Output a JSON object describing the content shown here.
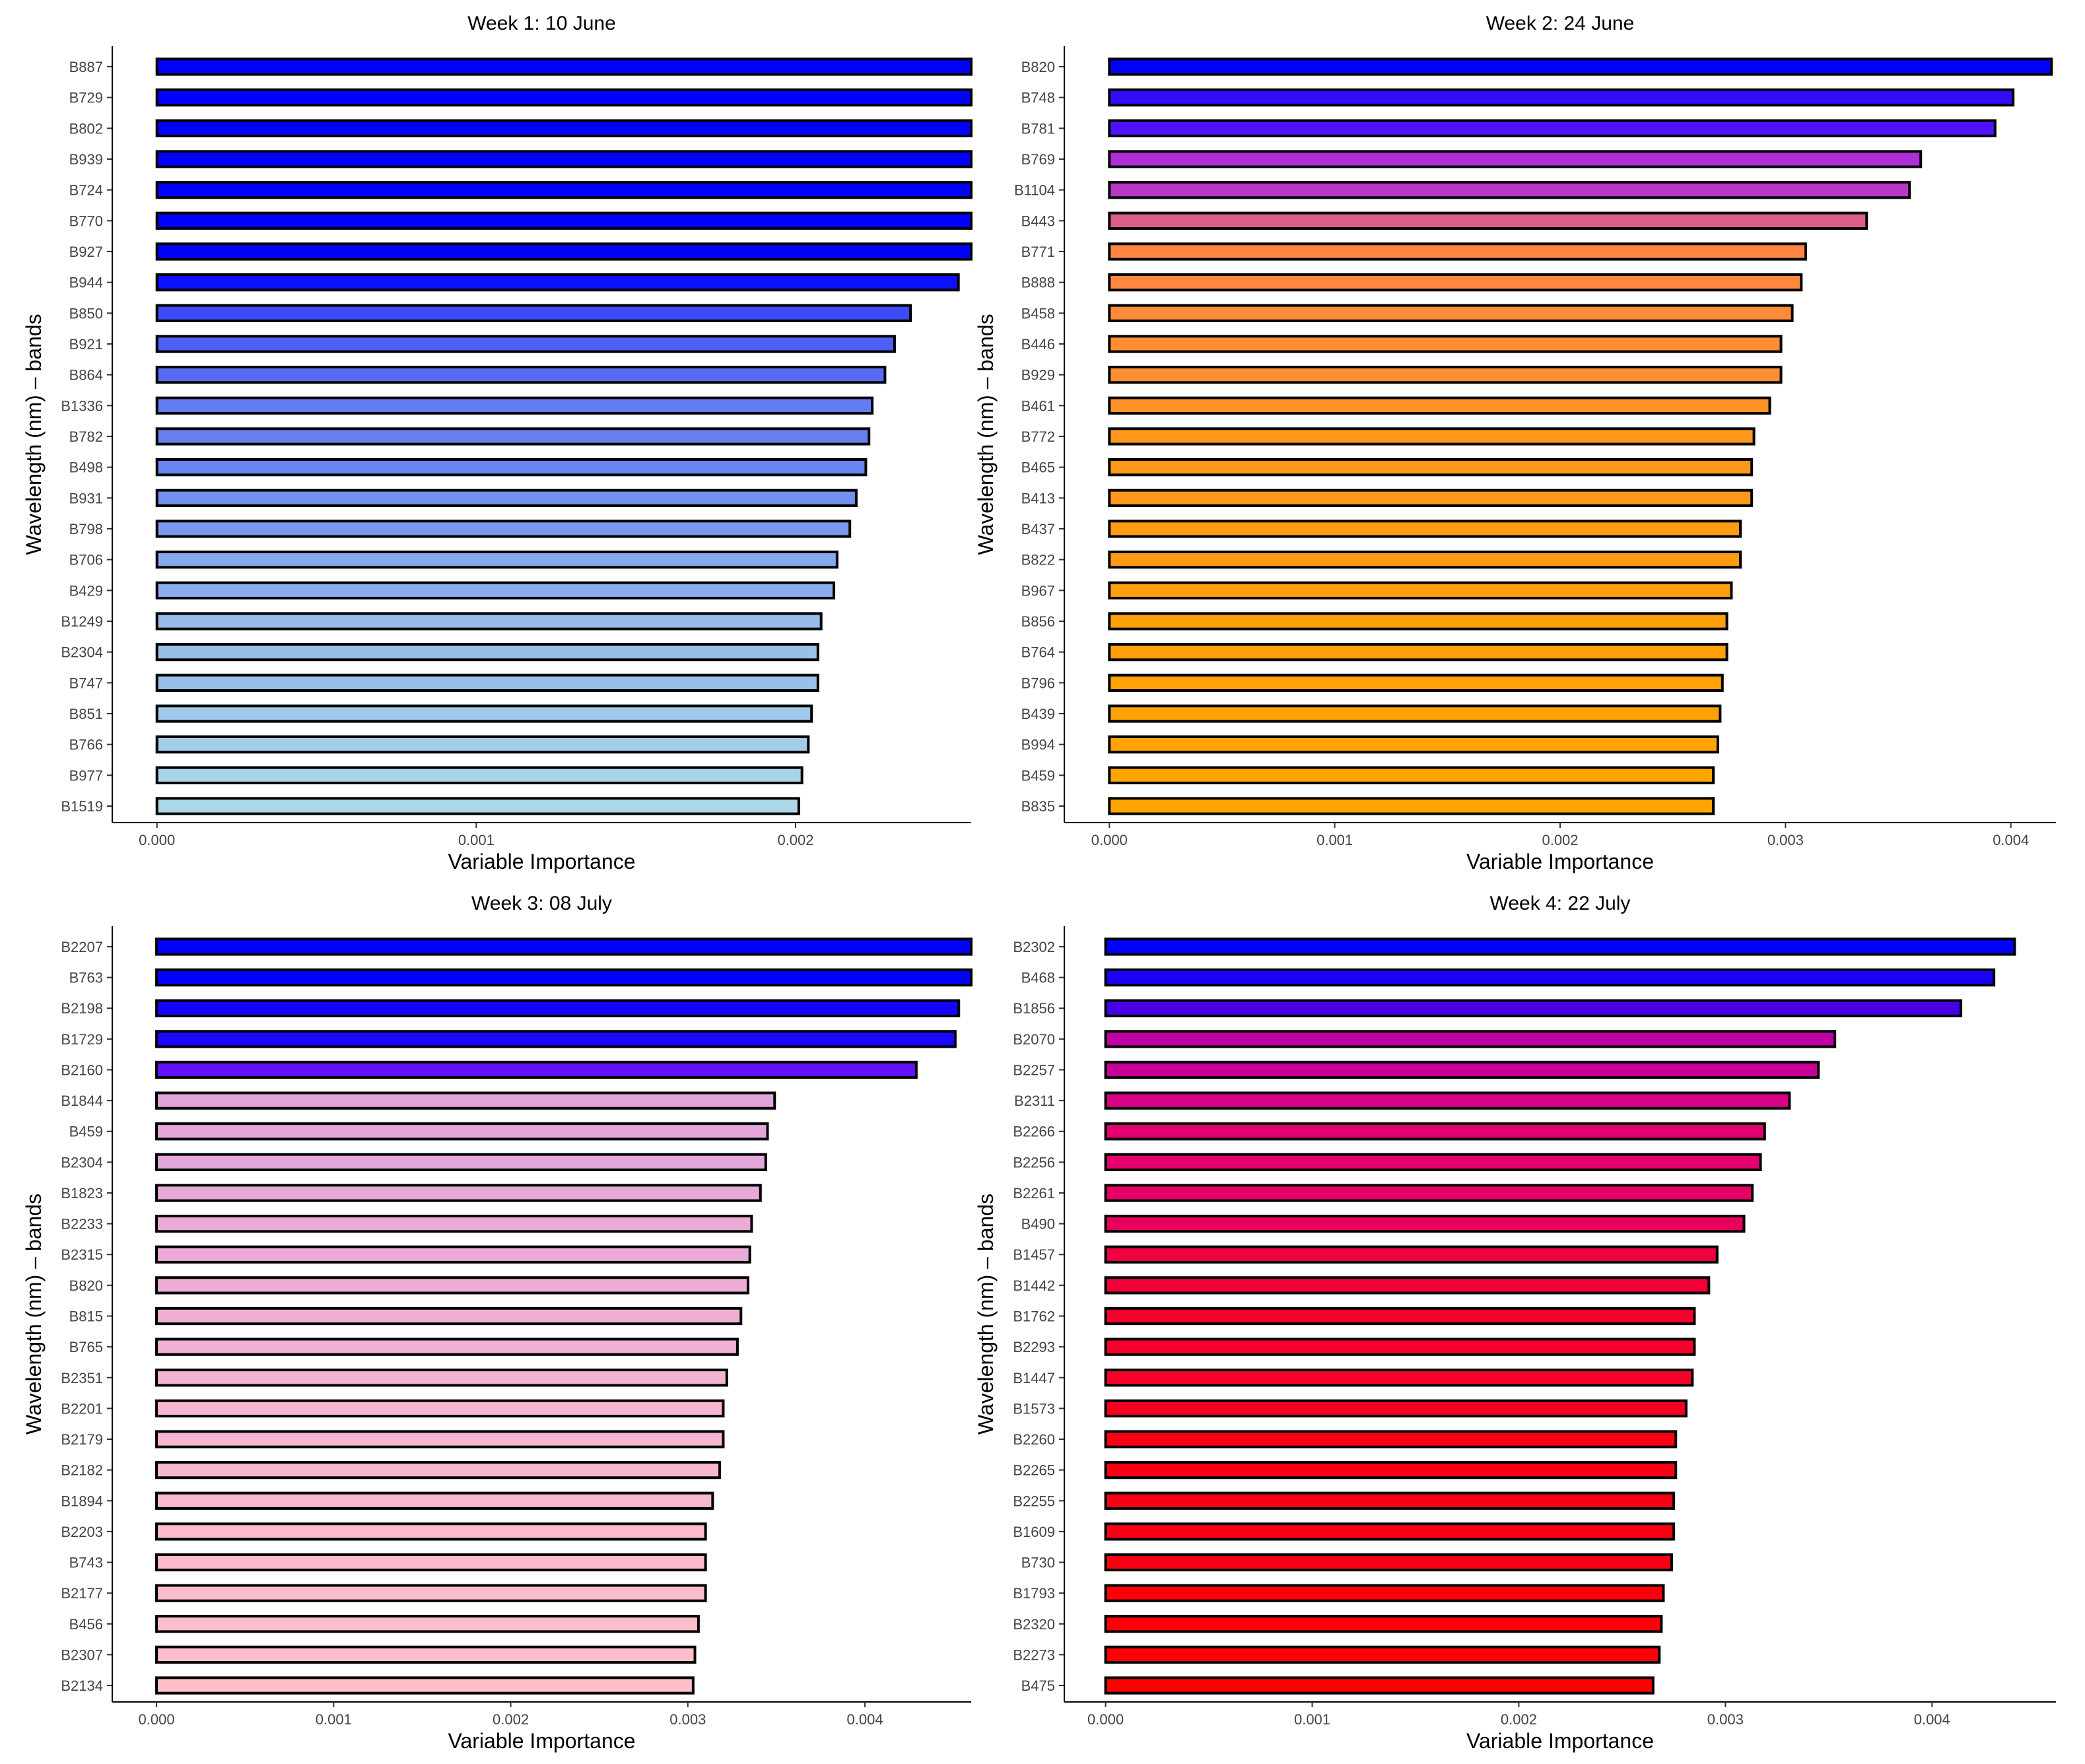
{
  "chart_data": [
    {
      "type": "bar",
      "orientation": "horizontal",
      "title": "Week 1: 10 June",
      "xlabel": "Variable Importance",
      "ylabel": "Wavelength (nm) – bands",
      "xlim": [
        -0.00014,
        0.00255
      ],
      "xticks": [
        0.0,
        0.001,
        0.002
      ],
      "xtick_labels": [
        "0.000",
        "0.001",
        "0.002"
      ],
      "gradient": [
        "#0000ff",
        "#add8e6"
      ],
      "categories": [
        "B887",
        "B729",
        "B802",
        "B939",
        "B724",
        "B770",
        "B927",
        "B944",
        "B850",
        "B921",
        "B864",
        "B1336",
        "B782",
        "B498",
        "B931",
        "B798",
        "B706",
        "B429",
        "B1249",
        "B2304",
        "B747",
        "B851",
        "B766",
        "B977",
        "B1519"
      ],
      "values": [
        0.00255,
        0.00255,
        0.00255,
        0.00255,
        0.00255,
        0.00255,
        0.00255,
        0.00251,
        0.00236,
        0.00231,
        0.00228,
        0.00224,
        0.00223,
        0.00222,
        0.00219,
        0.00217,
        0.00213,
        0.00212,
        0.00208,
        0.00207,
        0.00207,
        0.00205,
        0.00204,
        0.00202,
        0.00201
      ]
    },
    {
      "type": "bar",
      "orientation": "horizontal",
      "title": "Week 2: 24 June",
      "xlabel": "Variable Importance",
      "ylabel": "Wavelength (nm) – bands",
      "xlim": [
        -0.0002,
        0.0042
      ],
      "xticks": [
        0.0,
        0.001,
        0.002,
        0.003,
        0.004
      ],
      "xtick_labels": [
        "0.000",
        "0.001",
        "0.002",
        "0.003",
        "0.004"
      ],
      "gradient": [
        "#0000ff",
        "#a020f0",
        "#ff7f50",
        "#ffa500"
      ],
      "categories": [
        "B820",
        "B748",
        "B781",
        "B769",
        "B1104",
        "B443",
        "B771",
        "B888",
        "B458",
        "B446",
        "B929",
        "B461",
        "B772",
        "B465",
        "B413",
        "B437",
        "B822",
        "B967",
        "B856",
        "B764",
        "B796",
        "B439",
        "B994",
        "B459",
        "B835"
      ],
      "values": [
        0.00418,
        0.00401,
        0.00393,
        0.0036,
        0.00355,
        0.00336,
        0.00309,
        0.00307,
        0.00303,
        0.00298,
        0.00298,
        0.00293,
        0.00286,
        0.00285,
        0.00285,
        0.0028,
        0.0028,
        0.00276,
        0.00274,
        0.00274,
        0.00272,
        0.00271,
        0.0027,
        0.00268,
        0.00268
      ]
    },
    {
      "type": "bar",
      "orientation": "horizontal",
      "title": "Week 3: 08  July",
      "xlabel": "Variable Importance",
      "ylabel": "Wavelength (nm) – bands",
      "xlim": [
        -0.00025,
        0.0046
      ],
      "xticks": [
        0.0,
        0.001,
        0.002,
        0.003,
        0.004
      ],
      "xtick_labels": [
        "0.000",
        "0.001",
        "0.002",
        "0.003",
        "0.004"
      ],
      "gradient": [
        "#0000ff",
        "#a020f0",
        "#dda0dd",
        "#ffc0cb"
      ],
      "categories": [
        "B2207",
        "B763",
        "B2198",
        "B1729",
        "B2160",
        "B1844",
        "B459",
        "B2304",
        "B1823",
        "B2233",
        "B2315",
        "B820",
        "B815",
        "B765",
        "B2351",
        "B2201",
        "B2179",
        "B2182",
        "B1894",
        "B2203",
        "B743",
        "B2177",
        "B456",
        "B2307",
        "B2134"
      ],
      "values": [
        0.0046,
        0.0046,
        0.00453,
        0.00451,
        0.00429,
        0.00349,
        0.00345,
        0.00344,
        0.00341,
        0.00336,
        0.00335,
        0.00334,
        0.0033,
        0.00328,
        0.00322,
        0.0032,
        0.0032,
        0.00318,
        0.00314,
        0.0031,
        0.0031,
        0.0031,
        0.00306,
        0.00304,
        0.00303
      ]
    },
    {
      "type": "bar",
      "orientation": "horizontal",
      "title": "Week 4: 22 July",
      "xlabel": "Variable Importance",
      "ylabel": "Wavelength (nm) – bands",
      "xlim": [
        -0.0002,
        0.0046
      ],
      "xticks": [
        0.0,
        0.001,
        0.002,
        0.003,
        0.004
      ],
      "xtick_labels": [
        "0.000",
        "0.001",
        "0.002",
        "0.003",
        "0.004"
      ],
      "gradient": [
        "#0000ff",
        "#a000c8",
        "#e0007a",
        "#ff0000"
      ],
      "categories": [
        "B2302",
        "B468",
        "B1856",
        "B2070",
        "B2257",
        "B2311",
        "B2266",
        "B2256",
        "B2261",
        "B490",
        "B1457",
        "B1442",
        "B1762",
        "B2293",
        "B1447",
        "B1573",
        "B2260",
        "B2265",
        "B2255",
        "B1609",
        "B730",
        "B1793",
        "B2320",
        "B2273",
        "B475"
      ],
      "values": [
        0.0044,
        0.0043,
        0.00414,
        0.00353,
        0.00345,
        0.00331,
        0.00319,
        0.00317,
        0.00313,
        0.00309,
        0.00296,
        0.00292,
        0.00285,
        0.00285,
        0.00284,
        0.00281,
        0.00276,
        0.00276,
        0.00275,
        0.00275,
        0.00274,
        0.0027,
        0.00269,
        0.00268,
        0.00265
      ]
    }
  ]
}
